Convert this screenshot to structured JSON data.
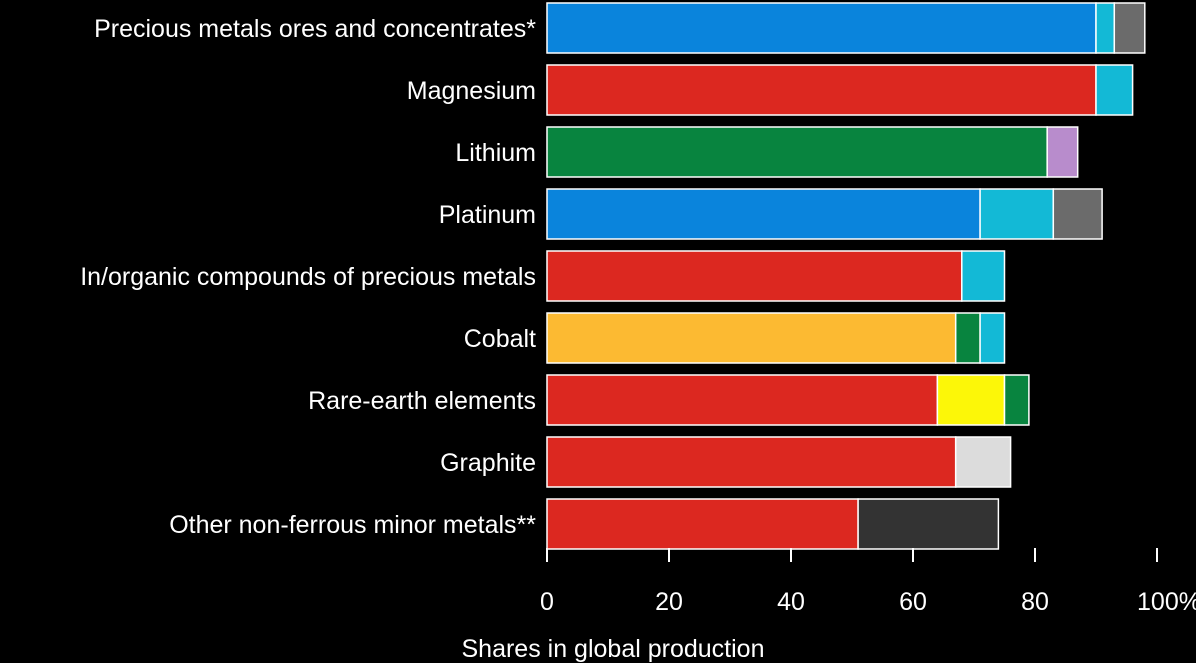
{
  "chart_data": {
    "type": "bar",
    "orientation": "horizontal",
    "stacked": true,
    "xlabel": "Shares in global production",
    "xlim": [
      0,
      100
    ],
    "x_ticks": [
      "0",
      "20",
      "40",
      "60",
      "80",
      "100%"
    ],
    "grid": false,
    "categories": [
      {
        "name": "Precious metals ores and concentrates*",
        "segments": [
          {
            "value": 90,
            "color": "#0a84dc"
          },
          {
            "value": 3,
            "color": "#13b9d6"
          },
          {
            "value": 5,
            "color": "#6b6b6b"
          }
        ]
      },
      {
        "name": "Magnesium",
        "segments": [
          {
            "value": 90,
            "color": "#dc2820"
          },
          {
            "value": 6,
            "color": "#13b9d6"
          }
        ]
      },
      {
        "name": "Lithium",
        "segments": [
          {
            "value": 82,
            "color": "#08843f"
          },
          {
            "value": 5,
            "color": "#b88ccc"
          }
        ]
      },
      {
        "name": "Platinum",
        "segments": [
          {
            "value": 71,
            "color": "#0a84dc"
          },
          {
            "value": 12,
            "color": "#13b9d6"
          },
          {
            "value": 8,
            "color": "#6b6b6b"
          }
        ]
      },
      {
        "name": "In/organic compounds of precious metals",
        "segments": [
          {
            "value": 68,
            "color": "#dc2820"
          },
          {
            "value": 7,
            "color": "#13b9d6"
          }
        ]
      },
      {
        "name": "Cobalt",
        "segments": [
          {
            "value": 67,
            "color": "#fcba32"
          },
          {
            "value": 4,
            "color": "#08843f"
          },
          {
            "value": 4,
            "color": "#13b9d6"
          }
        ]
      },
      {
        "name": "Rare-earth elements",
        "segments": [
          {
            "value": 64,
            "color": "#dc2820"
          },
          {
            "value": 11,
            "color": "#fcf708"
          },
          {
            "value": 4,
            "color": "#08843f"
          }
        ]
      },
      {
        "name": "Graphite",
        "segments": [
          {
            "value": 67,
            "color": "#dc2820"
          },
          {
            "value": 9,
            "color": "#dcdcdc"
          }
        ]
      },
      {
        "name": "Other non-ferrous minor metals**",
        "segments": [
          {
            "value": 51,
            "color": "#dc2820"
          },
          {
            "value": 23,
            "color": "#333333"
          }
        ]
      }
    ]
  }
}
